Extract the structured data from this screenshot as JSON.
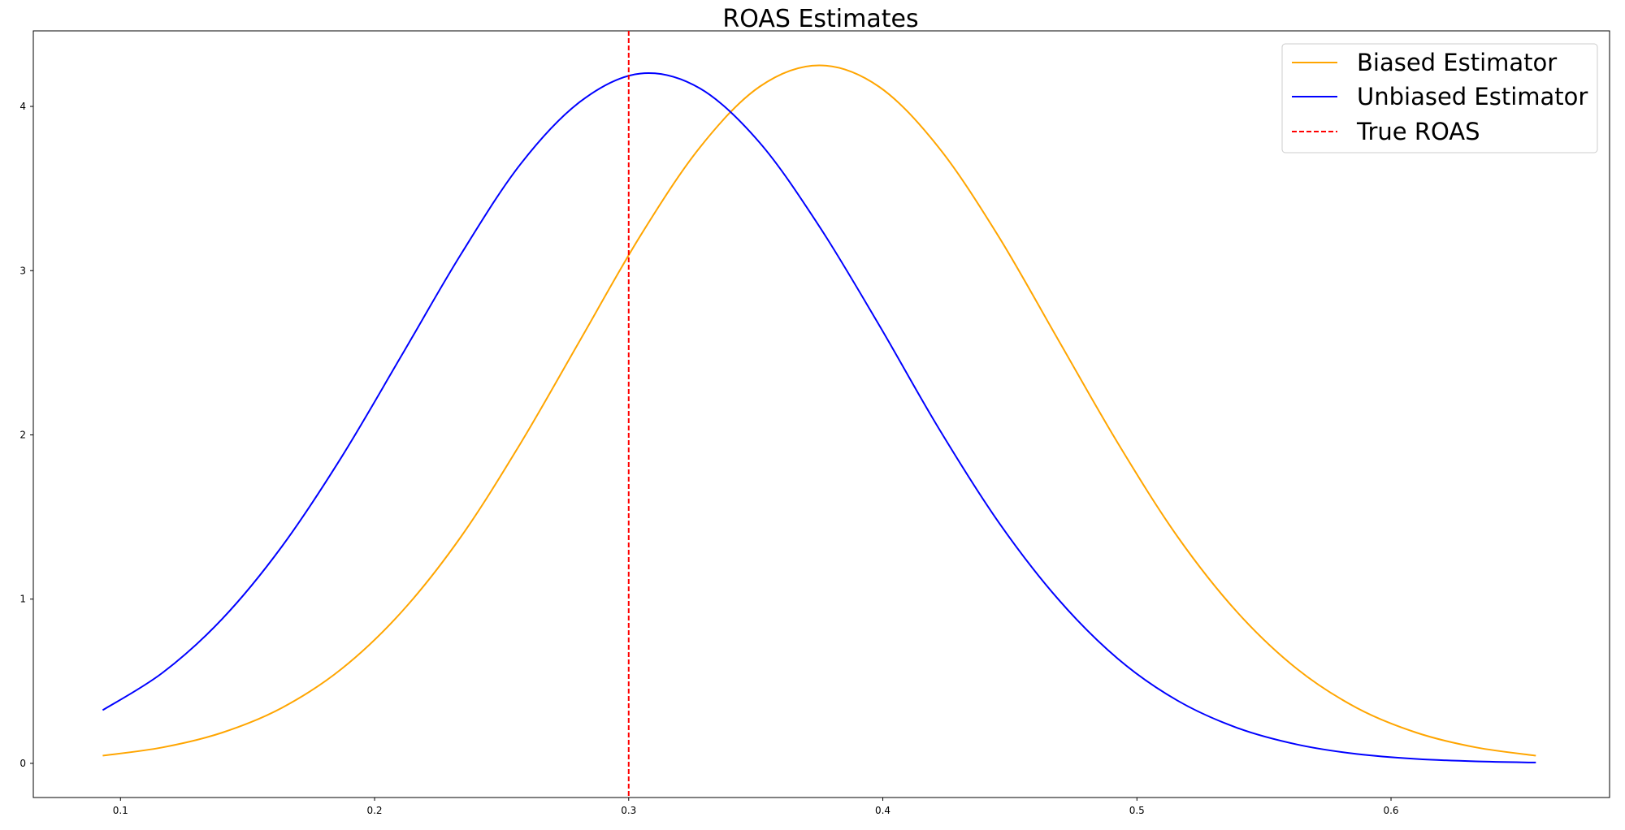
{
  "chart_data": {
    "type": "line",
    "title": "ROAS Estimates",
    "xlabel": "",
    "ylabel": "",
    "xlim": [
      0.0657,
      0.686
    ],
    "ylim": [
      -0.208,
      4.46
    ],
    "xticks": [
      0.1,
      0.2,
      0.3,
      0.4,
      0.5,
      0.6
    ],
    "xtick_labels": [
      "0.1",
      "0.2",
      "0.3",
      "0.4",
      "0.5",
      "0.6"
    ],
    "yticks": [
      0,
      1,
      2,
      3,
      4
    ],
    "ytick_labels": [
      "0",
      "1",
      "2",
      "3",
      "4"
    ],
    "grid": false,
    "legend_placement": "top-right",
    "x": [
      0.093,
      0.1165,
      0.14,
      0.1635,
      0.187,
      0.2105,
      0.234,
      0.2575,
      0.281,
      0.3045,
      0.328,
      0.3515,
      0.375,
      0.3985,
      0.422,
      0.4455,
      0.469,
      0.4925,
      0.516,
      0.5395,
      0.563,
      0.5865,
      0.61,
      0.6335,
      0.657
    ],
    "series": [
      {
        "name": "Biased Estimator",
        "color": "#ffa500",
        "style": "solid",
        "values": [
          0.047,
          0.097,
          0.187,
          0.338,
          0.575,
          0.92,
          1.38,
          1.95,
          2.58,
          3.21,
          3.75,
          4.12,
          4.25,
          4.12,
          3.75,
          3.21,
          2.58,
          1.95,
          1.38,
          0.92,
          0.575,
          0.338,
          0.187,
          0.097,
          0.047
        ]
      },
      {
        "name": "Unbiased Estimator",
        "color": "#0000ff",
        "style": "solid",
        "values": [
          0.324,
          0.551,
          0.879,
          1.32,
          1.865,
          2.48,
          3.1,
          3.65,
          4.03,
          4.2,
          4.11,
          3.78,
          3.27,
          2.67,
          2.04,
          1.47,
          1.0,
          0.637,
          0.382,
          0.216,
          0.115,
          0.057,
          0.027,
          0.012,
          0.005
        ]
      }
    ],
    "vlines": [
      {
        "name": "True ROAS",
        "x": 0.3,
        "color": "#ff0000",
        "style": "dashed"
      }
    ]
  }
}
